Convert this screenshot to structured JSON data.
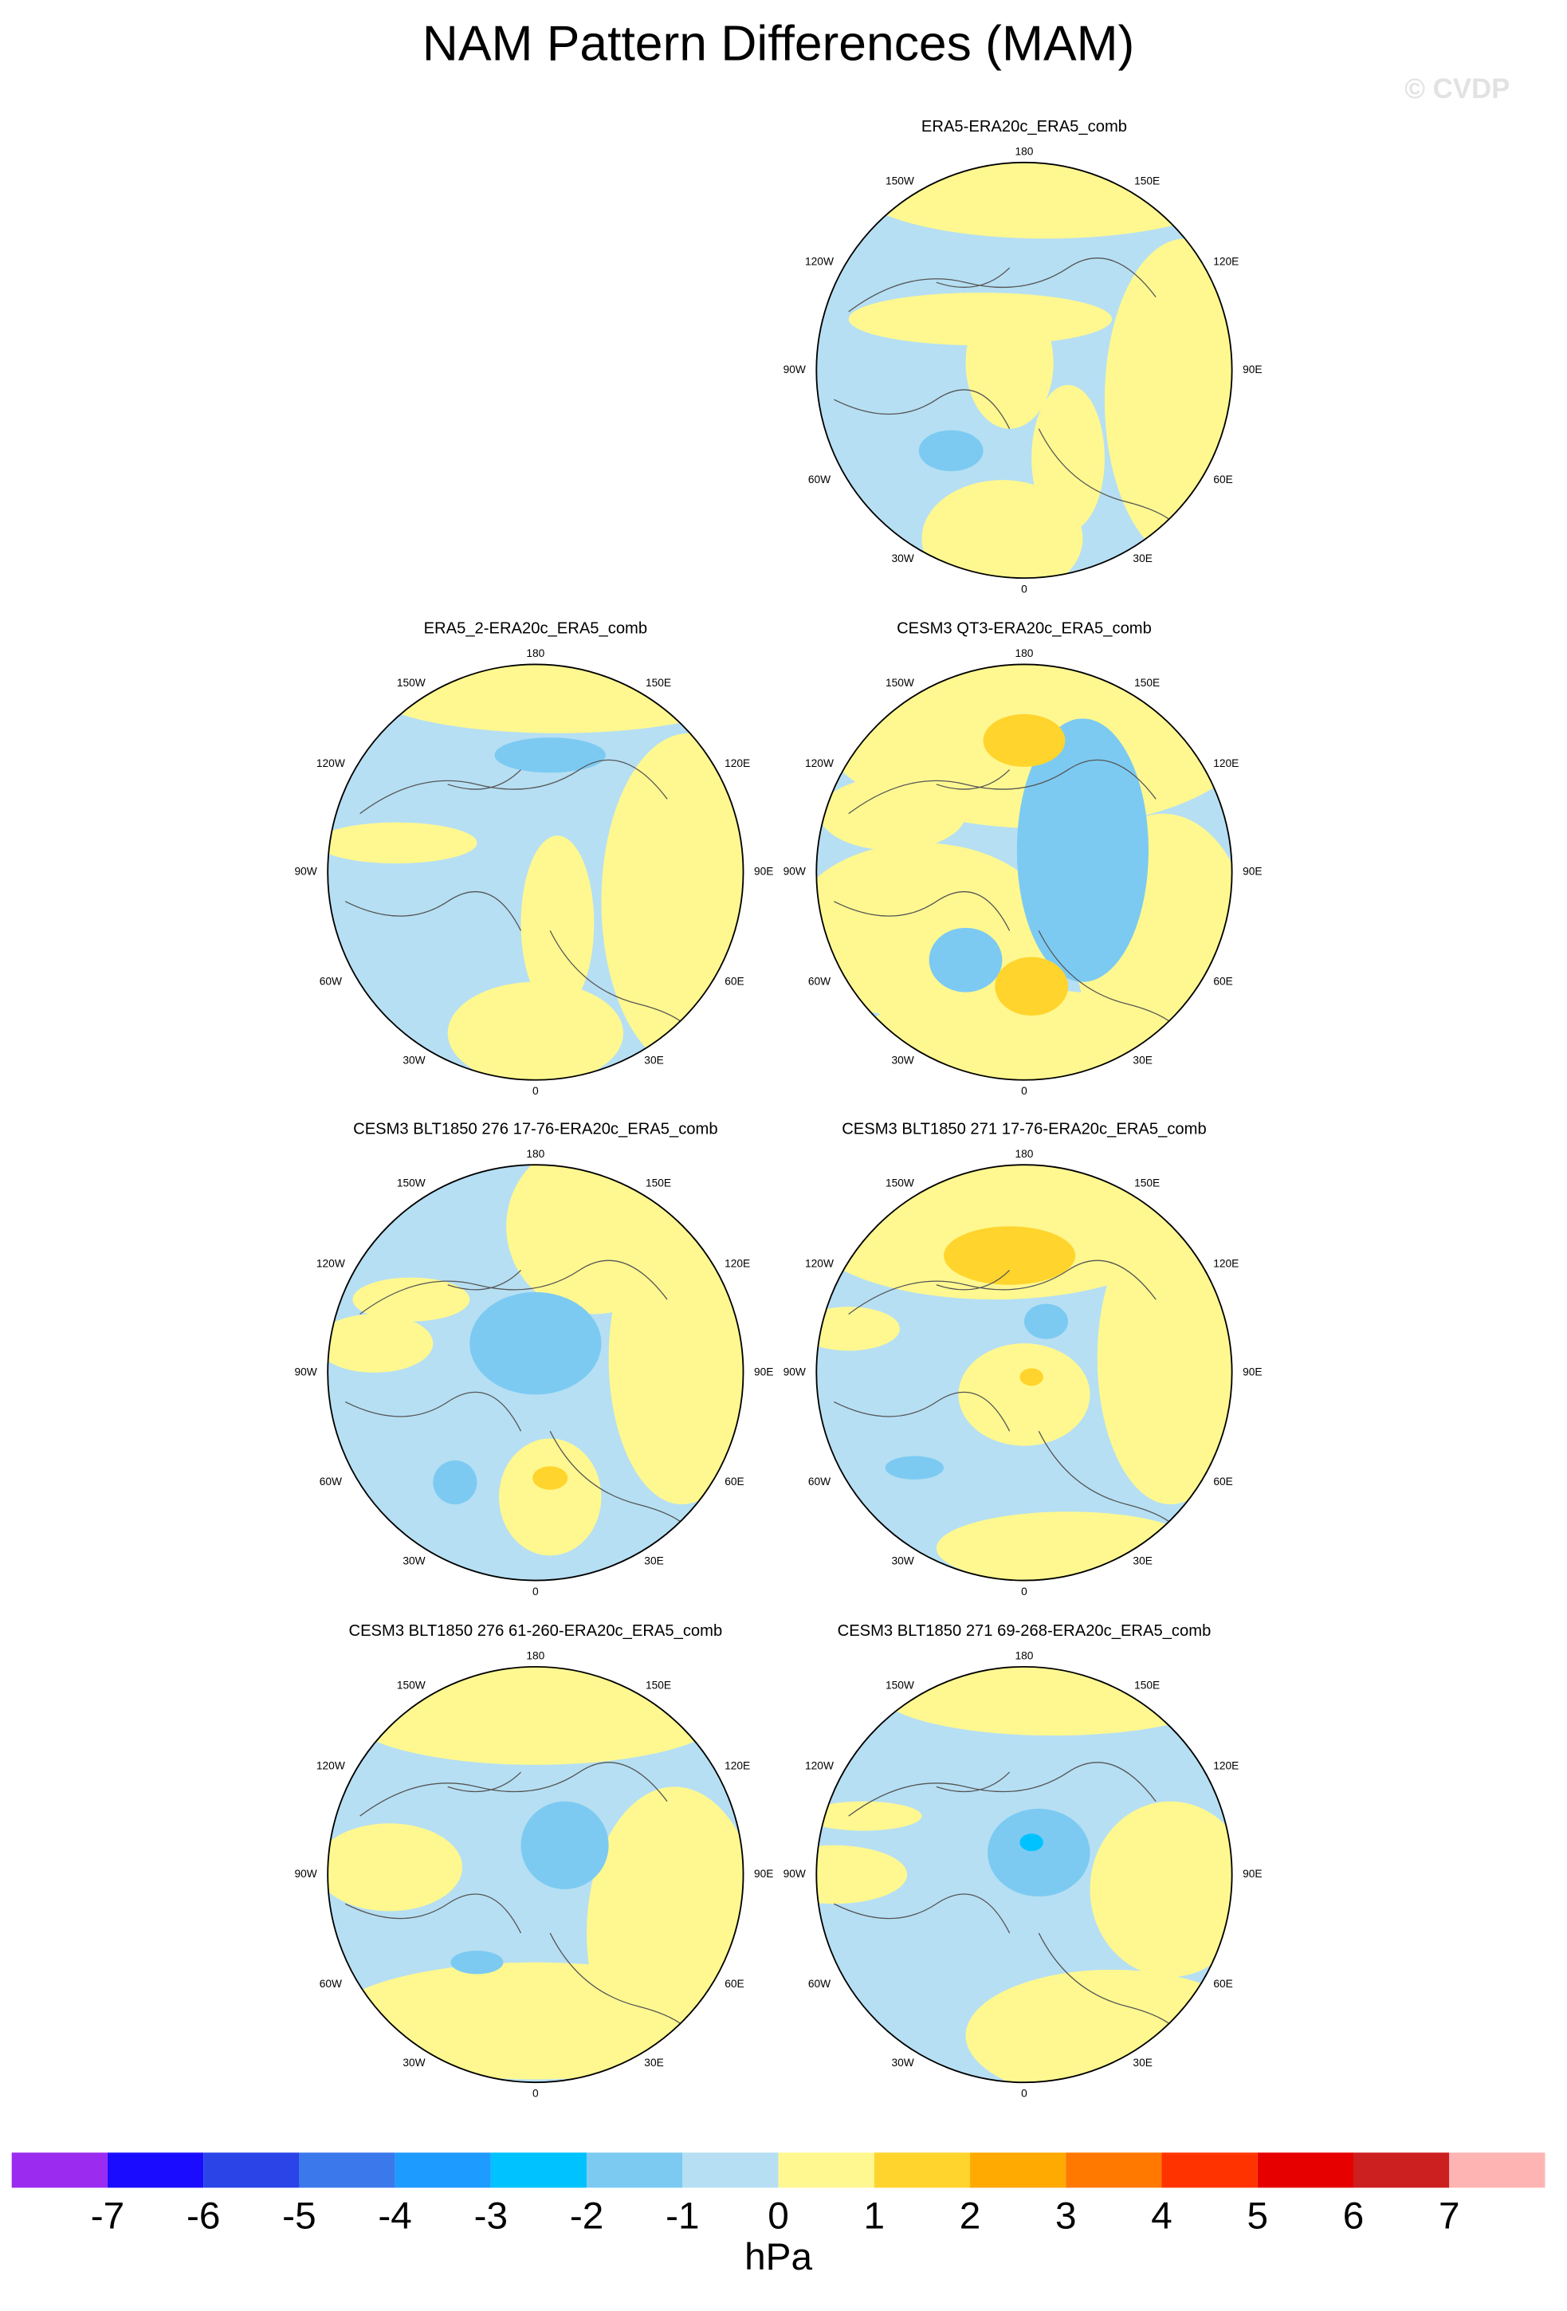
{
  "title": "NAM Pattern Differences (MAM)",
  "watermark": "© CVDP",
  "longitude_labels": [
    "180",
    "150W",
    "150E",
    "120W",
    "120E",
    "90W",
    "90E",
    "60W",
    "60E",
    "30W",
    "30E",
    "0"
  ],
  "panels": [
    {
      "title": "ERA5-ERA20c_ERA5_comb"
    },
    {
      "title": "ERA5_2-ERA20c_ERA5_comb"
    },
    {
      "title": "CESM3 QT3-ERA20c_ERA5_comb"
    },
    {
      "title": "CESM3 BLT1850 276 17-76-ERA20c_ERA5_comb"
    },
    {
      "title": "CESM3 BLT1850 271 17-76-ERA20c_ERA5_comb"
    },
    {
      "title": "CESM3 BLT1850 276 61-260-ERA20c_ERA5_comb"
    },
    {
      "title": "CESM3 BLT1850 271 69-268-ERA20c_ERA5_comb"
    }
  ],
  "colorbar": {
    "levels": [
      -7,
      -6,
      -5,
      -4,
      -3,
      -2,
      -1,
      0,
      1,
      2,
      3,
      4,
      5,
      6,
      7
    ],
    "colors": [
      "#9b2bef",
      "#1a0dff",
      "#2a44e8",
      "#3a78ec",
      "#1e9bff",
      "#00c2ff",
      "#7ccaf2",
      "#b6dff3",
      "#fff890",
      "#ffd42c",
      "#ffaa00",
      "#ff7800",
      "#ff3300",
      "#e60000",
      "#cc1f1f",
      "#ffb4b4"
    ],
    "label": "hPa"
  }
}
